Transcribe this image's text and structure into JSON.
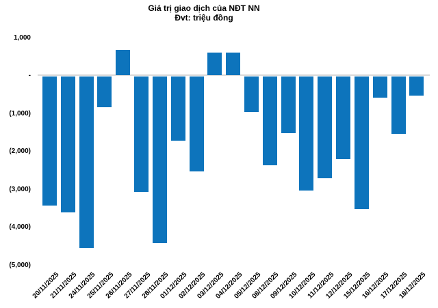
{
  "title": "Giá trị giao dịch của NĐT NN",
  "subtitle": "Đvt: triệu đồng",
  "colors": {
    "bar": "#0d74bc",
    "axis_line": "#d9d9d9",
    "text": "#000000",
    "background": "#ffffff"
  },
  "chart_data": {
    "type": "bar",
    "title": "Giá trị giao dịch của NĐT NN",
    "subtitle": "Đvt: triệu đồng",
    "unit": "triệu đồng",
    "categories": [
      "20/11/2025",
      "21/11/2025",
      "24/11/2025",
      "25/11/2025",
      "26/11/2025",
      "27/11/2025",
      "28/11/2025",
      "01/12/2025",
      "02/12/2025",
      "03/12/2025",
      "04/12/2025",
      "05/12/2025",
      "08/12/2025",
      "09/12/2025",
      "10/12/2025",
      "11/12/2025",
      "12/12/2025",
      "15/12/2025",
      "16/12/2025",
      "17/12/2025",
      "18/12/2025"
    ],
    "values": [
      -3400,
      -3580,
      -4530,
      -810,
      670,
      -3040,
      -4390,
      -1700,
      -2510,
      600,
      590,
      -930,
      -2350,
      -1500,
      -3000,
      -2680,
      -2180,
      -3500,
      -550,
      -1520,
      -500
    ],
    "xlabel": "",
    "ylabel": "",
    "ylim": [
      -5000,
      1000
    ],
    "ytick_values": [
      1000,
      0,
      -1000,
      -2000,
      -3000,
      -4000,
      -5000
    ],
    "ytick_labels": [
      "1,000",
      "-",
      "(1,000)",
      "(2,000)",
      "(3,000)",
      "(4,000)",
      "(5,000)"
    ],
    "grid": false,
    "legend_position": "none",
    "bar_color": "#0d74bc"
  }
}
